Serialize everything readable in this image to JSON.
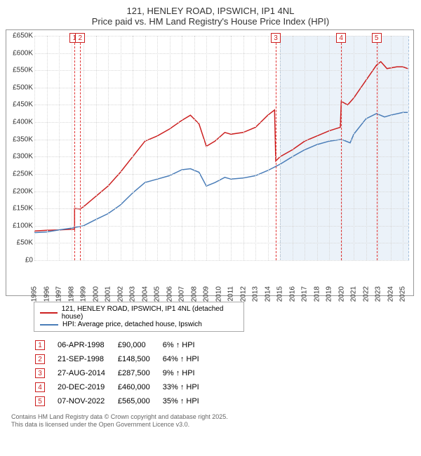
{
  "title": {
    "line1": "121, HENLEY ROAD, IPSWICH, IP1 4NL",
    "line2": "Price paid vs. HM Land Registry's House Price Index (HPI)"
  },
  "chart": {
    "type": "line",
    "background_color": "#ffffff",
    "grid_color": "#e0e0e0",
    "x": {
      "min": 1995,
      "max": 2025.5,
      "ticks": [
        1995,
        1996,
        1997,
        1998,
        1999,
        2000,
        2001,
        2002,
        2003,
        2004,
        2005,
        2006,
        2007,
        2008,
        2009,
        2010,
        2011,
        2012,
        2013,
        2014,
        2015,
        2016,
        2017,
        2018,
        2019,
        2020,
        2021,
        2022,
        2023,
        2024,
        2025
      ]
    },
    "y": {
      "min": 0,
      "max": 650000,
      "ticks": [
        0,
        50000,
        100000,
        150000,
        200000,
        250000,
        300000,
        350000,
        400000,
        450000,
        500000,
        550000,
        600000,
        650000
      ],
      "tick_labels": [
        "£0",
        "£50K",
        "£100K",
        "£150K",
        "£200K",
        "£250K",
        "£300K",
        "£350K",
        "£400K",
        "£450K",
        "£500K",
        "£550K",
        "£600K",
        "£650K"
      ]
    },
    "shaded": {
      "from": 2015,
      "to": 2025.5,
      "fill": "#dce9f5",
      "border": "#5a8bbf"
    },
    "markers": [
      {
        "n": "1",
        "x": 1998.27,
        "top": -4
      },
      {
        "n": "2",
        "x": 1998.73,
        "top": -4
      },
      {
        "n": "3",
        "x": 2014.65,
        "top": -4
      },
      {
        "n": "4",
        "x": 2019.97,
        "top": -4
      },
      {
        "n": "5",
        "x": 2022.85,
        "top": -4
      }
    ],
    "series": [
      {
        "name": "price_paid",
        "color": "#cc2020",
        "width": 1.5,
        "points": [
          [
            1995,
            85000
          ],
          [
            1996,
            87000
          ],
          [
            1997,
            88000
          ],
          [
            1998.1,
            90000
          ],
          [
            1998.27,
            90000
          ],
          [
            1998.27,
            150000
          ],
          [
            1998.73,
            148500
          ],
          [
            1999,
            155000
          ],
          [
            2000,
            185000
          ],
          [
            2001,
            215000
          ],
          [
            2002,
            255000
          ],
          [
            2003,
            300000
          ],
          [
            2004,
            345000
          ],
          [
            2005,
            360000
          ],
          [
            2006,
            380000
          ],
          [
            2007,
            405000
          ],
          [
            2007.7,
            420000
          ],
          [
            2008.4,
            395000
          ],
          [
            2009,
            330000
          ],
          [
            2009.7,
            345000
          ],
          [
            2010.5,
            370000
          ],
          [
            2011,
            365000
          ],
          [
            2012,
            370000
          ],
          [
            2013,
            385000
          ],
          [
            2014,
            420000
          ],
          [
            2014.55,
            435000
          ],
          [
            2014.65,
            287500
          ],
          [
            2015,
            300000
          ],
          [
            2016,
            320000
          ],
          [
            2017,
            345000
          ],
          [
            2018,
            360000
          ],
          [
            2019,
            375000
          ],
          [
            2019.9,
            385000
          ],
          [
            2019.98,
            460000
          ],
          [
            2020.5,
            450000
          ],
          [
            2021,
            470000
          ],
          [
            2022.85,
            565000
          ],
          [
            2023.2,
            575000
          ],
          [
            2023.7,
            555000
          ],
          [
            2024.5,
            560000
          ],
          [
            2025,
            560000
          ],
          [
            2025.4,
            555000
          ]
        ]
      },
      {
        "name": "hpi",
        "color": "#4a7db8",
        "width": 1.5,
        "points": [
          [
            1995,
            80000
          ],
          [
            1996,
            82000
          ],
          [
            1997,
            88000
          ],
          [
            1998,
            93000
          ],
          [
            1999,
            100000
          ],
          [
            2000,
            118000
          ],
          [
            2001,
            135000
          ],
          [
            2002,
            160000
          ],
          [
            2003,
            195000
          ],
          [
            2004,
            225000
          ],
          [
            2005,
            235000
          ],
          [
            2006,
            245000
          ],
          [
            2007,
            262000
          ],
          [
            2007.7,
            265000
          ],
          [
            2008.4,
            255000
          ],
          [
            2009,
            215000
          ],
          [
            2009.7,
            225000
          ],
          [
            2010.5,
            240000
          ],
          [
            2011,
            235000
          ],
          [
            2012,
            238000
          ],
          [
            2013,
            245000
          ],
          [
            2014,
            260000
          ],
          [
            2015,
            278000
          ],
          [
            2016,
            300000
          ],
          [
            2017,
            320000
          ],
          [
            2018,
            335000
          ],
          [
            2019,
            345000
          ],
          [
            2020,
            350000
          ],
          [
            2020.7,
            340000
          ],
          [
            2021,
            365000
          ],
          [
            2022,
            410000
          ],
          [
            2022.85,
            425000
          ],
          [
            2023.5,
            415000
          ],
          [
            2024,
            420000
          ],
          [
            2025,
            428000
          ],
          [
            2025.4,
            428000
          ]
        ]
      }
    ]
  },
  "legend": [
    {
      "color": "#cc2020",
      "label": "121, HENLEY ROAD, IPSWICH, IP1 4NL (detached house)"
    },
    {
      "color": "#4a7db8",
      "label": "HPI: Average price, detached house, Ipswich"
    }
  ],
  "events": [
    {
      "n": "1",
      "date": "06-APR-1998",
      "price": "£90,000",
      "delta": "6% ↑ HPI"
    },
    {
      "n": "2",
      "date": "21-SEP-1998",
      "price": "£148,500",
      "delta": "64% ↑ HPI"
    },
    {
      "n": "3",
      "date": "27-AUG-2014",
      "price": "£287,500",
      "delta": "9% ↑ HPI"
    },
    {
      "n": "4",
      "date": "20-DEC-2019",
      "price": "£460,000",
      "delta": "33% ↑ HPI"
    },
    {
      "n": "5",
      "date": "07-NOV-2022",
      "price": "£565,000",
      "delta": "35% ↑ HPI"
    }
  ],
  "credit": {
    "line1": "Contains HM Land Registry data © Crown copyright and database right 2025.",
    "line2": "This data is licensed under the Open Government Licence v3.0."
  }
}
